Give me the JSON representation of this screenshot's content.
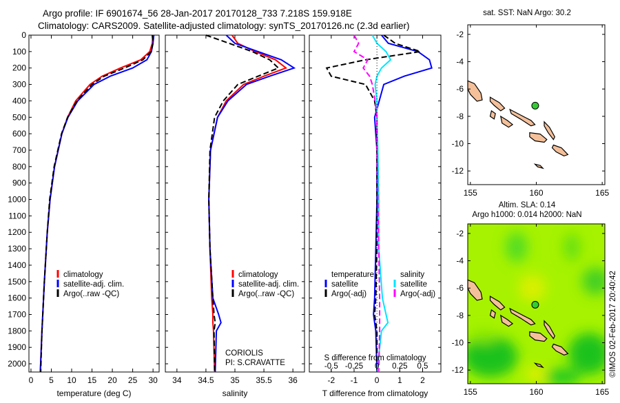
{
  "title": {
    "line1": "Argo profile: IF 6901674_56 28-Jan-2017 20170128_733 7.218S 159.918E",
    "line2": "Climatology: CARS2009. Satellite-adjusted climatology: synTS_20170126.nc (2.3d earlier)"
  },
  "footer": {
    "institution": "CORIOLIS",
    "pi": "PI: S.CRAVATTE",
    "stamp": "©IMOS 02-Feb-2017 20:40:42"
  },
  "colors": {
    "climatology": "#ff0000",
    "satellite": "#0000ff",
    "argo": "#000000",
    "salinity_satellite": "#00e5ff",
    "salinity_argo": "#ff00ff",
    "land": "#f4c09a",
    "argo_marker": "#33cc33"
  },
  "chart_data": [
    {
      "type": "line",
      "id": "temperature",
      "xlabel": "temperature (deg C)",
      "ylabel": "",
      "xlim": [
        -0.5,
        31.5
      ],
      "ylim": [
        2050,
        0
      ],
      "xticks": [
        0,
        5,
        10,
        15,
        20,
        25,
        30
      ],
      "yticks": [
        0,
        100,
        200,
        300,
        400,
        500,
        600,
        700,
        800,
        900,
        1000,
        1100,
        1200,
        1300,
        1400,
        1500,
        1600,
        1700,
        1800,
        1900,
        2000
      ],
      "legend": [
        "climatology",
        "satellite-adj. clim.",
        "Argo(..raw -QC)"
      ],
      "legend_placement": "lower-center",
      "depth": [
        0,
        50,
        100,
        150,
        200,
        250,
        300,
        400,
        500,
        600,
        800,
        1000,
        1200,
        1500,
        1800,
        2050
      ],
      "series": [
        {
          "name": "climatology",
          "style": "solid",
          "color": "#ff0000",
          "values": [
            30,
            29.8,
            29.2,
            27,
            22,
            17.5,
            14.5,
            11,
            9,
            7.6,
            5.8,
            4.7,
            4,
            3.3,
            2.7,
            2.3
          ]
        },
        {
          "name": "satellite-adj. clim.",
          "style": "solid",
          "color": "#0000ff",
          "values": [
            30.2,
            30,
            29.6,
            28.5,
            25,
            19.5,
            15.5,
            11.5,
            9.1,
            7.6,
            5.8,
            4.7,
            4,
            3.3,
            2.7,
            2.3
          ]
        },
        {
          "name": "Argo(..raw -QC)",
          "style": "dashed",
          "color": "#000000",
          "values": [
            29.8,
            30,
            29.5,
            27.5,
            23,
            18,
            15,
            11.3,
            9,
            7.5,
            5.7,
            4.6,
            4,
            3.3,
            2.7,
            2.4
          ]
        }
      ]
    },
    {
      "type": "line",
      "id": "salinity",
      "xlabel": "salinity",
      "xlim": [
        33.8,
        36.2
      ],
      "ylim": [
        2050,
        0
      ],
      "xticks": [
        34,
        34.5,
        35,
        35.5,
        36
      ],
      "legend": [
        "climatology",
        "satellite-adj. clim.",
        "Argo(..raw -QC)"
      ],
      "legend_placement": "lower-center",
      "depth": [
        0,
        50,
        100,
        150,
        200,
        250,
        300,
        400,
        500,
        700,
        1000,
        1300,
        1600,
        1700,
        1750,
        1800,
        2050
      ],
      "series": [
        {
          "name": "climatology",
          "style": "solid",
          "color": "#ff0000",
          "values": [
            34.95,
            35.05,
            35.35,
            35.7,
            35.88,
            35.5,
            35.15,
            34.85,
            34.7,
            34.58,
            34.55,
            34.57,
            34.6,
            34.62,
            34.62,
            34.63,
            34.65
          ]
        },
        {
          "name": "satellite-adj. clim.",
          "style": "solid",
          "color": "#0000ff",
          "values": [
            34.85,
            35.0,
            35.4,
            35.8,
            36.02,
            35.6,
            35.2,
            34.88,
            34.7,
            34.58,
            34.55,
            34.57,
            34.62,
            34.72,
            34.76,
            34.68,
            34.66
          ]
        },
        {
          "name": "Argo(..raw -QC)",
          "style": "dashed",
          "color": "#000000",
          "values": [
            34.5,
            34.9,
            35.3,
            35.6,
            35.75,
            35.4,
            35.05,
            34.8,
            34.65,
            34.57,
            34.55,
            34.57,
            34.62,
            34.64,
            34.66,
            34.64,
            34.65
          ]
        }
      ]
    },
    {
      "type": "line",
      "id": "difference",
      "xlabel": "T difference from climatology",
      "x2label": "S difference from climatology",
      "xlim": [
        -2.96,
        2.8
      ],
      "ylim": [
        2050,
        0
      ],
      "xticks": [
        -2,
        -1,
        0,
        1,
        2
      ],
      "x2ticks": [
        -0.5,
        -0.25,
        0,
        0.25,
        0.5
      ],
      "legend_headers": [
        "temperature",
        "salinity"
      ],
      "legend": [
        "satellite",
        "Argo(-adj)",
        "satellite",
        "Argo(-adj)"
      ],
      "legend_placement": "lower-center",
      "depth": [
        0,
        50,
        100,
        150,
        200,
        250,
        300,
        400,
        500,
        700,
        1000,
        1300,
        1600,
        1700,
        1750,
        1800,
        2050
      ],
      "series": [
        {
          "name": "temperature satellite",
          "quantity": "T",
          "style": "solid",
          "color": "#0000ff",
          "values": [
            0.2,
            0.5,
            1.8,
            2.3,
            2.4,
            1.2,
            0.3,
            0.1,
            -0.1,
            0,
            0,
            -0.05,
            -0.1,
            -0.15,
            -0.1,
            -0.05,
            0
          ]
        },
        {
          "name": "temperature Argo(-adj)",
          "quantity": "T",
          "style": "dashed",
          "color": "#000000",
          "values": [
            0.3,
            0.8,
            1.9,
            -0.5,
            -2.2,
            -2.0,
            -0.5,
            -0.1,
            0,
            0,
            0,
            0,
            -0.05,
            -0.1,
            -0.05,
            0,
            0
          ]
        },
        {
          "name": "salinity satellite",
          "quantity": "S",
          "style": "solid",
          "color": "#00e5ff",
          "values": [
            -0.05,
            0,
            0.1,
            0.15,
            0.05,
            0,
            -0.02,
            0,
            0,
            0.01,
            0.02,
            0.02,
            0.06,
            0.1,
            0.12,
            0.05,
            0
          ]
        },
        {
          "name": "salinity Argo(-adj)",
          "quantity": "S",
          "style": "dashed",
          "color": "#ff00ff",
          "values": [
            -0.25,
            -0.2,
            -0.25,
            -0.1,
            -0.15,
            -0.08,
            -0.05,
            -0.02,
            0,
            0,
            0.01,
            0.02,
            0.03,
            0.03,
            0.03,
            0.03,
            0.02
          ]
        }
      ]
    },
    {
      "type": "scatter",
      "id": "sst_map",
      "title": "sat. SST: NaN Argo: 30.2",
      "xlim": [
        154.8,
        165.2
      ],
      "ylim": [
        -13,
        -1.3
      ],
      "xticks": [
        155,
        160,
        165
      ],
      "yticks": [
        -2,
        -4,
        -6,
        -8,
        -10,
        -12
      ],
      "points": [
        {
          "lon": 159.918,
          "lat": -7.218
        }
      ]
    },
    {
      "type": "heatmap",
      "id": "sla_map",
      "title": "Altim. SLA: 0.14",
      "subtitle": "Argo h1000: 0.014 h2000: NaN",
      "xlim": [
        154.8,
        165.2
      ],
      "ylim": [
        -13,
        -1.3
      ],
      "xticks": [
        155,
        160,
        165
      ],
      "yticks": [
        -2,
        -4,
        -6,
        -8,
        -10,
        -12
      ],
      "points": [
        {
          "lon": 159.918,
          "lat": -7.218
        }
      ]
    }
  ]
}
